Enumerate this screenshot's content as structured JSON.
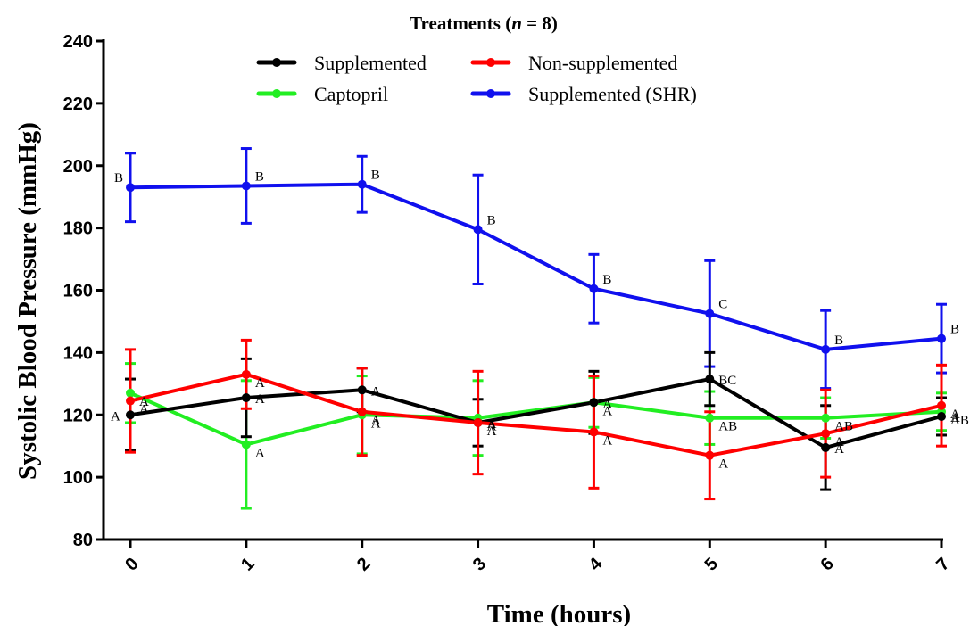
{
  "chart_data": {
    "type": "line",
    "legend_title": "Treatments (n = 8)",
    "legend_title_parts": {
      "prefix": "Treatments (",
      "italic": "n",
      "suffix": " = 8)"
    },
    "legend_placement": "top-center",
    "xlabel": "Time (hours)",
    "ylabel": "Systolic Blood Pressure (mmHg)",
    "x": [
      0,
      1,
      2,
      3,
      4,
      5,
      6,
      7
    ],
    "x_tick_labels": [
      "0",
      "1",
      "2",
      "3",
      "4",
      "5",
      "6",
      "7"
    ],
    "ylim": [
      80,
      240
    ],
    "y_ticks": [
      80,
      100,
      120,
      140,
      160,
      180,
      200,
      220,
      240
    ],
    "grid": false,
    "series": [
      {
        "name": "Supplemented",
        "color": "#000000",
        "values": [
          120,
          125.5,
          128,
          117.5,
          124,
          131.5,
          109.5,
          119.5
        ],
        "error": [
          11.5,
          12.5,
          7,
          7.5,
          10,
          8.5,
          13.5,
          6
        ],
        "letters": [
          "A",
          "A",
          "A",
          "A",
          "A",
          "BC",
          "A",
          "A"
        ]
      },
      {
        "name": "Non-supplemented",
        "color": "#ff0000",
        "values": [
          124.5,
          133,
          121,
          117.5,
          114.5,
          107,
          114,
          123
        ],
        "error": [
          16.5,
          11,
          14,
          16.5,
          18,
          14,
          14,
          13
        ],
        "letters": [
          "A",
          "A",
          "A",
          "A",
          "A",
          "A",
          "A",
          "A"
        ]
      },
      {
        "name": "Captopril",
        "color": "#22ee22",
        "values": [
          127,
          110.5,
          120,
          119,
          124,
          119,
          119,
          121
        ],
        "error": [
          9.5,
          20.5,
          12.5,
          12,
          8,
          8.5,
          6.5,
          6
        ],
        "letters": [
          "A",
          "A",
          "A",
          "A",
          "A",
          "AB",
          "AB",
          "AB"
        ]
      },
      {
        "name": "Supplemented (SHR)",
        "color": "#1010ee",
        "values": [
          193,
          193.5,
          194,
          179.5,
          160.5,
          152.5,
          141,
          144.5
        ],
        "error": [
          11,
          12,
          9,
          17.5,
          11,
          17,
          12.5,
          11
        ],
        "letters": [
          "B",
          "B",
          "B",
          "B",
          "B",
          "C",
          "B",
          "B"
        ]
      }
    ]
  }
}
